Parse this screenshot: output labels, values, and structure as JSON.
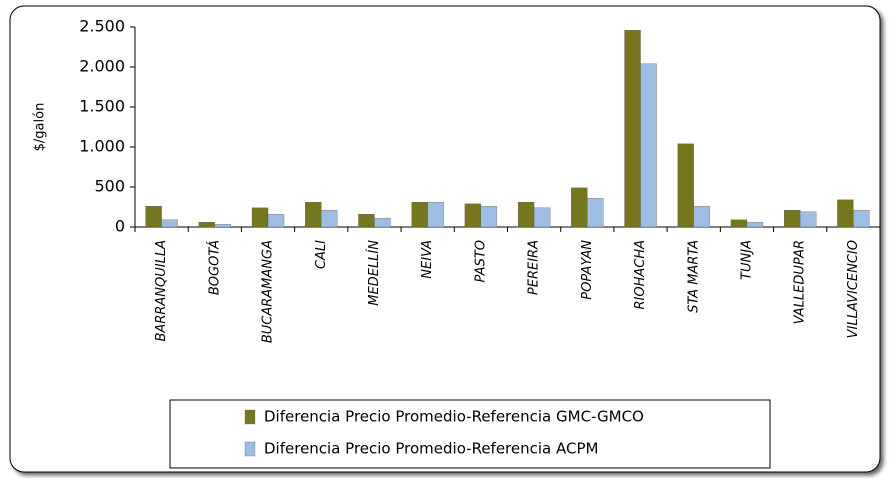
{
  "chart_data": {
    "type": "bar",
    "y_label": "$/galón",
    "categories": [
      "BARRANQUILLA",
      "BOGOTÁ",
      "BUCARAMANGA",
      "CALI",
      "MEDELLÍN",
      "NEIVA",
      "PASTO",
      "PEREIRA",
      "POPAYAN",
      "RIOHACHA",
      "STA MARTA",
      "TUNJA",
      "VALLEDUPAR",
      "VILLAVICENCIO"
    ],
    "series": [
      {
        "name": "Diferencia Precio Promedio-Referencia GMC-GMCO",
        "color": "#76761f",
        "values": [
          260,
          60,
          240,
          310,
          160,
          310,
          290,
          310,
          490,
          2460,
          1040,
          90,
          210,
          340
        ]
      },
      {
        "name": "Diferencia Precio Promedio-Referencia ACPM",
        "color": "#9ebde2",
        "values": [
          90,
          35,
          160,
          210,
          110,
          310,
          260,
          240,
          360,
          2040,
          260,
          60,
          190,
          210
        ]
      }
    ],
    "ylim": [
      0,
      2500
    ],
    "yticks": [
      0,
      500,
      {
        "value": 1000,
        "label": "1.000"
      },
      {
        "value": 1500,
        "label": "1.500"
      },
      {
        "value": 2000,
        "label": "2.000"
      },
      {
        "value": 2500,
        "label": "2.500"
      }
    ],
    "grid": false
  }
}
